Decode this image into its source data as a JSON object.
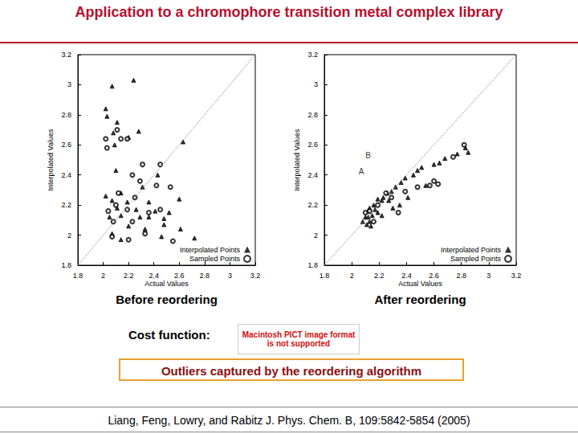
{
  "title": "Application to a chromophore transition metal complex library",
  "chart_data": [
    {
      "type": "scatter",
      "caption": "Before reordering",
      "xlabel": "Actual Values",
      "ylabel": "Interpolated Values",
      "xlim": [
        1.8,
        3.2
      ],
      "ylim": [
        1.8,
        3.2
      ],
      "xticks": [
        1.8,
        2,
        2.2,
        2.4,
        2.6,
        2.8,
        3,
        3.2
      ],
      "yticks": [
        1.8,
        2,
        2.2,
        2.4,
        2.6,
        2.8,
        3,
        3.2
      ],
      "grid": false,
      "legend": "lower right",
      "series": [
        {
          "type": "line",
          "line_style": "dotted",
          "color": "#808080",
          "x": [
            1.8,
            3.2
          ],
          "y": [
            1.8,
            3.2
          ]
        },
        {
          "name": "Interpolated Points",
          "marker": "triangle",
          "color": "#000000",
          "x": [
            2.24,
            2.07,
            2.02,
            2.03,
            2.11,
            2.08,
            2.09,
            2.2,
            2.28,
            2.63,
            2.43,
            2.1,
            2.14,
            2.31,
            2.02,
            2.07,
            2.11,
            2.19,
            2.26,
            2.36,
            2.41,
            2.52,
            2.6,
            2.05,
            2.14,
            2.29,
            2.36,
            2.48,
            2.07,
            2.2,
            2.33,
            2.48,
            2.61,
            2.72,
            2.14,
            2.46
          ],
          "y": [
            3.03,
            2.99,
            2.84,
            2.79,
            2.75,
            2.68,
            2.6,
            2.65,
            2.69,
            2.62,
            2.4,
            2.43,
            2.28,
            2.32,
            2.26,
            2.23,
            2.18,
            2.22,
            2.17,
            2.22,
            2.16,
            2.15,
            2.24,
            2.12,
            2.13,
            2.12,
            2.12,
            2.11,
            2.01,
            2.06,
            2.04,
            2.07,
            2.04,
            1.98,
            1.97,
            1.99
          ]
        },
        {
          "name": "Sampled Points",
          "marker": "open circle",
          "color": "#000000",
          "x": [
            2.02,
            2.03,
            2.11,
            2.14,
            2.19,
            2.31,
            2.45,
            2.23,
            2.42,
            2.29,
            2.53,
            2.12,
            2.25,
            2.1,
            2.19,
            2.04,
            2.36,
            2.45,
            2.08,
            2.23,
            2.33,
            2.07,
            2.2,
            2.55
          ],
          "y": [
            2.64,
            2.58,
            2.7,
            2.64,
            2.64,
            2.47,
            2.47,
            2.4,
            2.33,
            2.36,
            2.32,
            2.28,
            2.25,
            2.2,
            2.17,
            2.16,
            2.15,
            2.17,
            2.09,
            2.09,
            2.01,
            1.99,
            1.97,
            1.96
          ]
        }
      ]
    },
    {
      "type": "scatter",
      "caption": "After reordering",
      "xlabel": "Actual Values",
      "ylabel": "Interpolated Values",
      "xlim": [
        1.8,
        3.2
      ],
      "ylim": [
        1.8,
        3.2
      ],
      "xticks": [
        1.8,
        2,
        2.2,
        2.4,
        2.6,
        2.8,
        3,
        3.2
      ],
      "yticks": [
        1.8,
        2,
        2.2,
        2.4,
        2.6,
        2.8,
        3,
        3.2
      ],
      "grid": false,
      "legend": "lower right",
      "annotations": [
        {
          "text": "A",
          "x": 2.07,
          "y": 2.42
        },
        {
          "text": "B",
          "x": 2.12,
          "y": 2.53
        }
      ],
      "series": [
        {
          "type": "line",
          "line_style": "dotted",
          "color": "#808080",
          "x": [
            1.8,
            3.2
          ],
          "y": [
            1.8,
            3.2
          ]
        },
        {
          "name": "Interpolated Points",
          "marker": "triangle",
          "color": "#000000",
          "x": [
            2.83,
            2.85,
            2.77,
            2.68,
            2.64,
            2.6,
            2.51,
            2.48,
            2.45,
            2.39,
            2.36,
            2.32,
            2.29,
            2.26,
            2.23,
            2.22,
            2.19,
            2.16,
            2.17,
            2.13,
            2.12,
            2.15,
            2.1,
            2.13,
            2.11,
            2.14,
            2.19,
            2.22,
            2.3,
            2.35,
            2.41,
            2.54,
            2.27,
            2.12,
            2.08
          ],
          "y": [
            2.58,
            2.55,
            2.54,
            2.51,
            2.48,
            2.47,
            2.45,
            2.43,
            2.4,
            2.38,
            2.35,
            2.32,
            2.29,
            2.28,
            2.25,
            2.23,
            2.24,
            2.2,
            2.17,
            2.18,
            2.16,
            2.13,
            2.12,
            2.09,
            2.07,
            2.06,
            2.15,
            2.13,
            2.18,
            2.2,
            2.25,
            2.33,
            2.23,
            2.12,
            2.09
          ]
        },
        {
          "name": "Sampled Points",
          "marker": "open circle",
          "color": "#000000",
          "x": [
            2.82,
            2.74,
            2.6,
            2.57,
            2.63,
            2.48,
            2.39,
            2.29,
            2.19,
            2.13,
            2.16,
            2.25,
            2.34,
            2.1
          ],
          "y": [
            2.6,
            2.52,
            2.36,
            2.33,
            2.34,
            2.32,
            2.29,
            2.25,
            2.2,
            2.16,
            2.09,
            2.28,
            2.15,
            2.15
          ]
        }
      ]
    }
  ],
  "cost_function": {
    "label": "Cost function:",
    "image_text": "Macintosh PICT image format is not supported"
  },
  "note": "Outliers captured by the reordering algorithm",
  "citation": "Liang, Feng, Lowry, and Rabitz J. Phys. Chem. B, 109:5842-5854 (2005)"
}
